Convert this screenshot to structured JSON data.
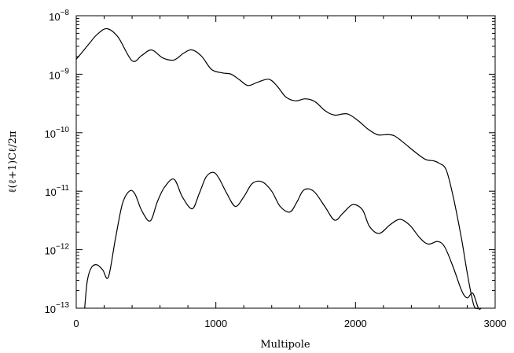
{
  "chart_data": {
    "type": "line",
    "title": "",
    "xlabel": "Multipole",
    "ylabel": "ℓ(ℓ+1)Cℓ/2π",
    "xlim": [
      0,
      3000
    ],
    "ylim": [
      1e-13,
      1e-08
    ],
    "yscale": "log",
    "grid": false,
    "legend": "none",
    "x_ticks": [
      0,
      1000,
      2000,
      3000
    ],
    "y_ticks": [
      {
        "base": "10",
        "exp": "-8"
      },
      {
        "base": "10",
        "exp": "-9"
      },
      {
        "base": "10",
        "exp": "-10"
      },
      {
        "base": "10",
        "exp": "-11"
      },
      {
        "base": "10",
        "exp": "-12"
      },
      {
        "base": "10",
        "exp": "-13"
      }
    ],
    "series": [
      {
        "x": [
          0,
          50,
          100,
          150,
          220,
          300,
          400,
          470,
          540,
          620,
          700,
          770,
          830,
          900,
          970,
          1050,
          1110,
          1170,
          1230,
          1300,
          1380,
          1440,
          1500,
          1570,
          1640,
          1710,
          1780,
          1850,
          1940,
          2020,
          2090,
          2160,
          2230,
          2280,
          2350,
          2420,
          2500,
          2560,
          2600,
          2650,
          2700,
          2760,
          2800,
          2840,
          2860,
          2880
        ],
        "y": [
          1.8e-09,
          2.5e-09,
          3.5e-09,
          4.8e-09,
          6e-09,
          4.3e-09,
          1.7e-09,
          2.1e-09,
          2.6e-09,
          1.9e-09,
          1.75e-09,
          2.3e-09,
          2.6e-09,
          2e-09,
          1.2e-09,
          1.05e-09,
          1e-09,
          8e-10,
          6.4e-10,
          7.3e-10,
          8.2e-10,
          6.2e-10,
          4.1e-10,
          3.5e-10,
          3.8e-10,
          3.4e-10,
          2.4e-10,
          2e-10,
          2.1e-10,
          1.6e-10,
          1.15e-10,
          9.2e-11,
          9.3e-11,
          8.8e-11,
          6.6e-11,
          4.8e-11,
          3.5e-11,
          3.3e-11,
          3e-11,
          2.3e-11,
          8e-12,
          1.5e-12,
          4e-13,
          1.3e-13,
          1e-13,
          1e-13
        ]
      },
      {
        "x": [
          60,
          80,
          110,
          150,
          190,
          230,
          280,
          330,
          380,
          420,
          470,
          530,
          580,
          630,
          700,
          760,
          830,
          880,
          930,
          980,
          1020,
          1080,
          1140,
          1200,
          1260,
          1330,
          1400,
          1460,
          1530,
          1580,
          1630,
          1700,
          1780,
          1850,
          1910,
          1980,
          2050,
          2100,
          2170,
          2250,
          2320,
          2390,
          2460,
          2520,
          2590,
          2640,
          2700,
          2760,
          2800,
          2840,
          2880,
          2900
        ],
        "y": [
          1e-13,
          3e-13,
          5e-13,
          5.5e-13,
          4.5e-13,
          3.4e-13,
          1.5e-12,
          6e-12,
          1e-11,
          9e-12,
          4.6e-12,
          3.1e-12,
          6.5e-12,
          1.15e-11,
          1.6e-11,
          8e-12,
          5e-12,
          9e-12,
          1.75e-11,
          2.1e-11,
          1.7e-11,
          9e-12,
          5.5e-12,
          8e-12,
          1.35e-11,
          1.45e-11,
          1e-11,
          5.5e-12,
          4.4e-12,
          6.5e-12,
          1.05e-11,
          1e-11,
          5.5e-12,
          3.2e-12,
          4.2e-12,
          5.9e-12,
          4.8e-12,
          2.5e-12,
          1.9e-12,
          2.7e-12,
          3.3e-12,
          2.6e-12,
          1.6e-12,
          1.25e-12,
          1.38e-12,
          1.1e-12,
          5e-13,
          2e-13,
          1.5e-13,
          1.8e-13,
          1e-13,
          1e-13
        ]
      }
    ]
  }
}
